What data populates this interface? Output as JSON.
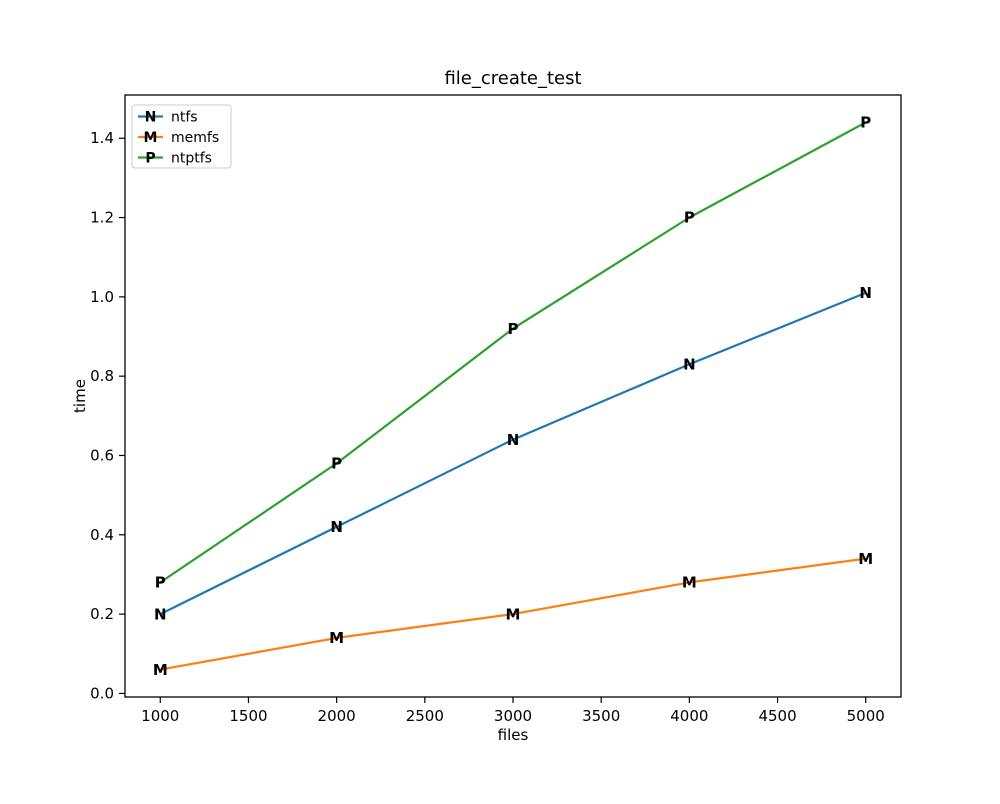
{
  "window": {
    "background": "#ffffff",
    "text_color": "#000000"
  },
  "chart_data": {
    "type": "line",
    "title": "file_create_test",
    "xlabel": "files",
    "ylabel": "time",
    "x": [
      1000,
      2000,
      3000,
      4000,
      5000
    ],
    "series": [
      {
        "name": "ntfs",
        "marker": "N",
        "color": "#1f77b4",
        "values": [
          0.2,
          0.42,
          0.64,
          0.83,
          1.01
        ]
      },
      {
        "name": "memfs",
        "marker": "M",
        "color": "#ff7f0e",
        "values": [
          0.06,
          0.14,
          0.2,
          0.28,
          0.34
        ]
      },
      {
        "name": "ntptfs",
        "marker": "P",
        "color": "#2ca02c",
        "values": [
          0.28,
          0.58,
          0.92,
          1.2,
          1.44
        ]
      }
    ],
    "xticks": [
      1000,
      1500,
      2000,
      2500,
      3000,
      3500,
      4000,
      4500,
      5000
    ],
    "yticks": [
      0.0,
      0.2,
      0.4,
      0.6,
      0.8,
      1.0,
      1.2,
      1.4
    ],
    "xlim": [
      800,
      5200
    ],
    "ylim": [
      -0.009,
      1.509
    ],
    "grid": false,
    "legend": {
      "position": "upper left",
      "entries": [
        "ntfs",
        "memfs",
        "ntptfs"
      ]
    }
  }
}
